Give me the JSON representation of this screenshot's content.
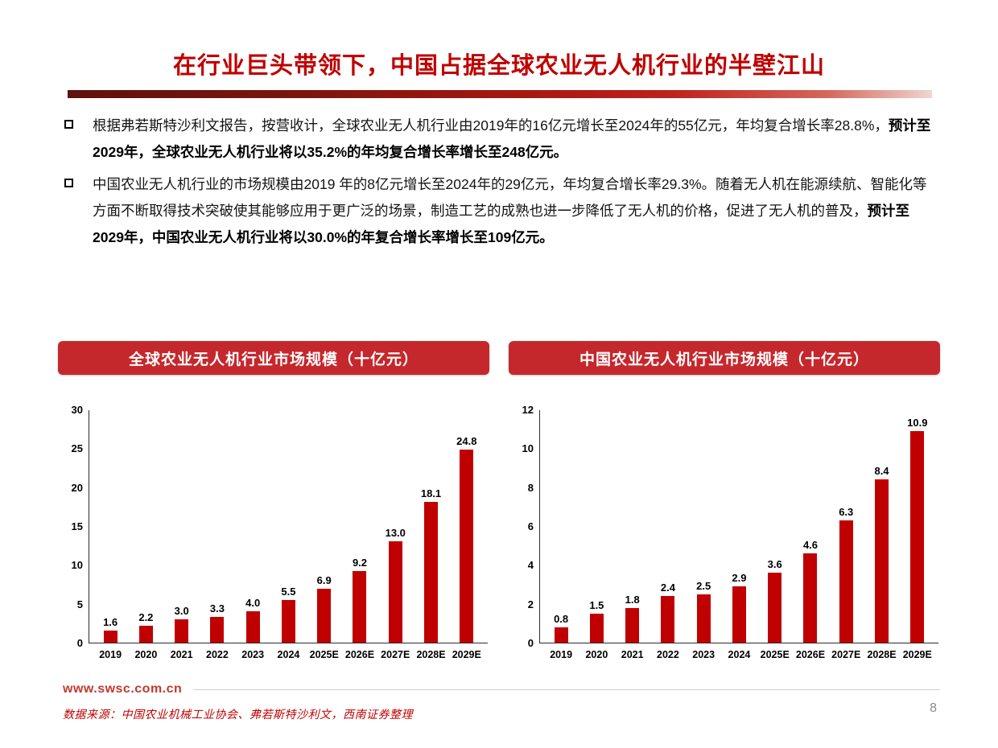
{
  "page": {
    "title": "在行业巨头带领下，中国占据全球农业无人机行业的半壁江山",
    "page_number": "8"
  },
  "bullets": [
    {
      "normal": "根据弗若斯特沙利文报告，按营收计，全球农业无人机行业由2019年的16亿元增长至2024年的55亿元，年均复合增长率28.8%，",
      "bold": "预计至2029年，全球农业无人机行业将以35.2%的年均复合增长率增长至248亿元。"
    },
    {
      "normal": "中国农业无人机行业的市场规模由2019 年的8亿元增长至2024年的29亿元，年均复合增长率29.3%。随着无人机在能源续航、智能化等方面不断取得技术突破使其能够应用于更广泛的场景，制造工艺的成熟也进一步降低了无人机的价格，促进了无人机的普及，",
      "bold": "预计至2029年，中国农业无人机行业将以30.0%的年复合增长率增长至109亿元。"
    }
  ],
  "footer": {
    "website": "www.swsc.com.cn",
    "source": "数据来源：中国农业机械工业协会、弗若斯特沙利文，西南证券整理"
  },
  "colors": {
    "accent_red": "#c00000",
    "banner_red": "#c5282c"
  },
  "chart_data": [
    {
      "type": "bar",
      "title": "全球农业无人机行业市场规模（十亿元）",
      "categories": [
        "2019",
        "2020",
        "2021",
        "2022",
        "2023",
        "2024",
        "2025E",
        "2026E",
        "2027E",
        "2028E",
        "2029E"
      ],
      "values": [
        1.6,
        2.2,
        3.0,
        3.3,
        4.0,
        5.5,
        6.9,
        9.2,
        13.0,
        18.1,
        24.8
      ],
      "ylim": [
        0,
        30
      ],
      "ytick_step": 5,
      "grid": false,
      "legend": false,
      "bar_color": "#c00000",
      "xlabel": "",
      "ylabel": ""
    },
    {
      "type": "bar",
      "title": "中国农业无人机行业市场规模（十亿元）",
      "categories": [
        "2019",
        "2020",
        "2021",
        "2022",
        "2023",
        "2024",
        "2025E",
        "2026E",
        "2027E",
        "2028E",
        "2029E"
      ],
      "values": [
        0.8,
        1.5,
        1.8,
        2.4,
        2.5,
        2.9,
        3.6,
        4.6,
        6.3,
        8.4,
        10.9
      ],
      "ylim": [
        0,
        12
      ],
      "ytick_step": 2,
      "grid": false,
      "legend": false,
      "bar_color": "#c00000",
      "xlabel": "",
      "ylabel": ""
    }
  ]
}
